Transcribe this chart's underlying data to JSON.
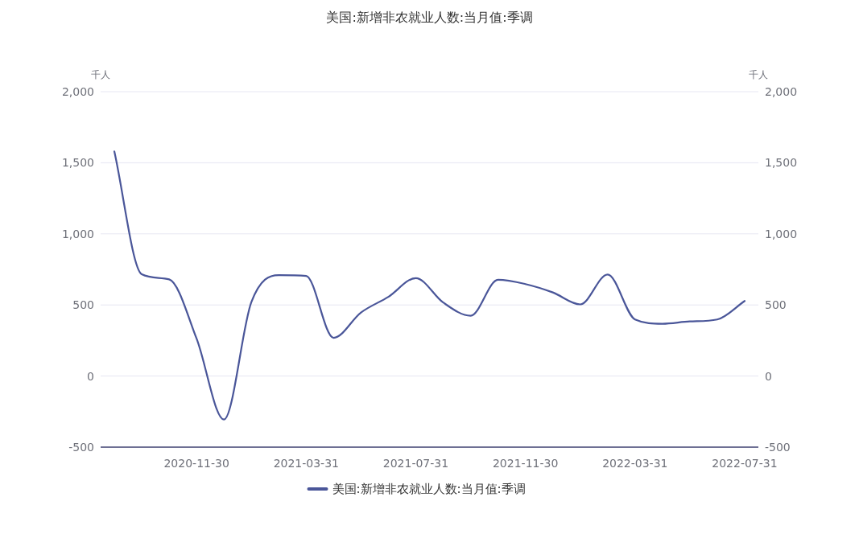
{
  "chart_data": {
    "type": "line",
    "title": "美国:新增非农就业人数:当月值:季调",
    "categories": [
      null,
      null,
      null,
      "2020-11-30",
      null,
      null,
      null,
      "2021-03-31",
      null,
      null,
      null,
      "2021-07-31",
      null,
      null,
      null,
      "2021-11-30",
      null,
      null,
      null,
      "2022-03-31",
      null,
      null,
      null,
      "2022-07-31"
    ],
    "series": [
      {
        "name": "美国:新增非农就业人数:当月值:季调",
        "color": "#4a5699",
        "values": [
          1580,
          716,
          680,
          264,
          -306,
          520,
          710,
          704,
          269,
          447,
          557,
          689,
          517,
          424,
          677,
          647,
          588,
          504,
          714,
          398,
          368,
          384,
          398,
          528
        ]
      }
    ],
    "ylabel": "千人",
    "y2label": "千人",
    "ylim": [
      -500,
      2000
    ],
    "yticks": [
      {
        "value": -500,
        "label": "-500"
      },
      0,
      500,
      {
        "value": 1000,
        "label": "1,000"
      },
      {
        "value": 1500,
        "label": "1,500"
      },
      {
        "value": 2000,
        "label": "2,000"
      }
    ],
    "y2lim": [
      -500,
      2000
    ],
    "y2ticks": [
      {
        "value": -500,
        "label": "-500"
      },
      0,
      500,
      {
        "value": 1000,
        "label": "1,000"
      },
      {
        "value": 1500,
        "label": "1,500"
      },
      {
        "value": 2000,
        "label": "2,000"
      }
    ],
    "grid": "y",
    "legend": "bottom",
    "marker": "none",
    "line_style": "solid"
  }
}
